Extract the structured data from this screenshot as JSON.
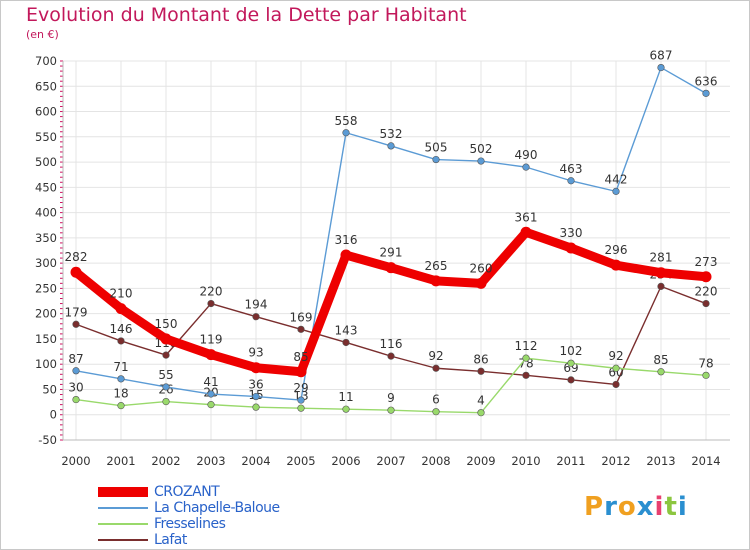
{
  "chart_data": {
    "type": "line",
    "title": "Evolution du Montant de la Dette par Habitant",
    "subtitle": "(en €)",
    "categories": [
      "2000",
      "2001",
      "2002",
      "2003",
      "2004",
      "2005",
      "2006",
      "2007",
      "2008",
      "2009",
      "2010",
      "2011",
      "2012",
      "2013",
      "2014"
    ],
    "ylim": [
      -50,
      700
    ],
    "yticks": [
      -50,
      0,
      50,
      100,
      150,
      200,
      250,
      300,
      350,
      400,
      450,
      500,
      550,
      600,
      650,
      700
    ],
    "grid": true,
    "legend_position": "bottom-left",
    "series": [
      {
        "name": "CROZANT",
        "color": "#ee0000",
        "values": [
          282,
          210,
          150,
          119,
          93,
          85,
          316,
          291,
          265,
          260,
          361,
          330,
          296,
          281,
          273
        ]
      },
      {
        "name": "La Chapelle-Baloue",
        "color": "#5b9bd5",
        "values": [
          87,
          71,
          55,
          41,
          36,
          29,
          558,
          532,
          505,
          502,
          490,
          463,
          442,
          687,
          636
        ]
      },
      {
        "name": "Fresselines",
        "color": "#99d96b",
        "values": [
          30,
          18,
          26,
          20,
          15,
          13,
          11,
          9,
          6,
          4,
          112,
          102,
          92,
          85,
          78
        ]
      },
      {
        "name": "Lafat",
        "color": "#7a2e2e",
        "values": [
          179,
          146,
          118,
          220,
          194,
          169,
          143,
          116,
          92,
          86,
          78,
          69,
          60,
          254,
          220
        ]
      }
    ]
  },
  "logo": {
    "text": "Proxiti",
    "letters": [
      "P",
      "r",
      "o",
      "x",
      "i",
      "t",
      "i"
    ]
  }
}
